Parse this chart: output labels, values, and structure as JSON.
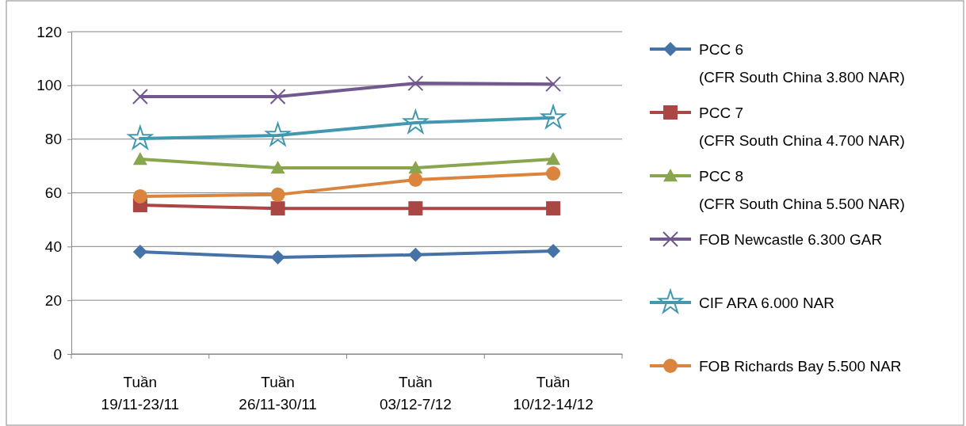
{
  "chart_data": {
    "type": "line",
    "categories": [
      "Tuần\n19/11-23/11",
      "Tuần\n26/11-30/11",
      "Tuần\n03/12-7/12",
      "Tuần\n10/12-14/12"
    ],
    "ylim": [
      0,
      120
    ],
    "yticks": [
      0,
      20,
      40,
      60,
      80,
      100,
      120
    ],
    "grid": "y",
    "legend": "right",
    "line_style": "solid",
    "series": [
      {
        "name": "PCC 6\n(CFR South China 3.800 NAR)",
        "color": "#4572a7",
        "marker": "diamond",
        "values": [
          38.0,
          36.0,
          36.9,
          38.3
        ]
      },
      {
        "name": "PCC 7\n(CFR South China 4.700 NAR)",
        "color": "#aa4643",
        "marker": "square",
        "values": [
          55.4,
          54.2,
          54.2,
          54.2
        ]
      },
      {
        "name": "PCC 8\n(CFR South China 5.500 NAR)",
        "color": "#89a54e",
        "marker": "triangle",
        "values": [
          72.5,
          69.3,
          69.3,
          72.5
        ]
      },
      {
        "name": "FOB Newcastle 6.300 GAR",
        "color": "#71588f",
        "marker": "cross",
        "values": [
          95.8,
          95.8,
          100.8,
          100.5
        ]
      },
      {
        "name": "CIF ARA 6.000 NAR",
        "color": "#4198af",
        "marker": "star",
        "values": [
          80.2,
          81.4,
          86.1,
          87.9
        ]
      },
      {
        "name": "FOB Richards Bay 5.500 NAR",
        "color": "#db843d",
        "marker": "circle",
        "values": [
          58.7,
          59.3,
          64.9,
          67.2
        ]
      }
    ]
  }
}
